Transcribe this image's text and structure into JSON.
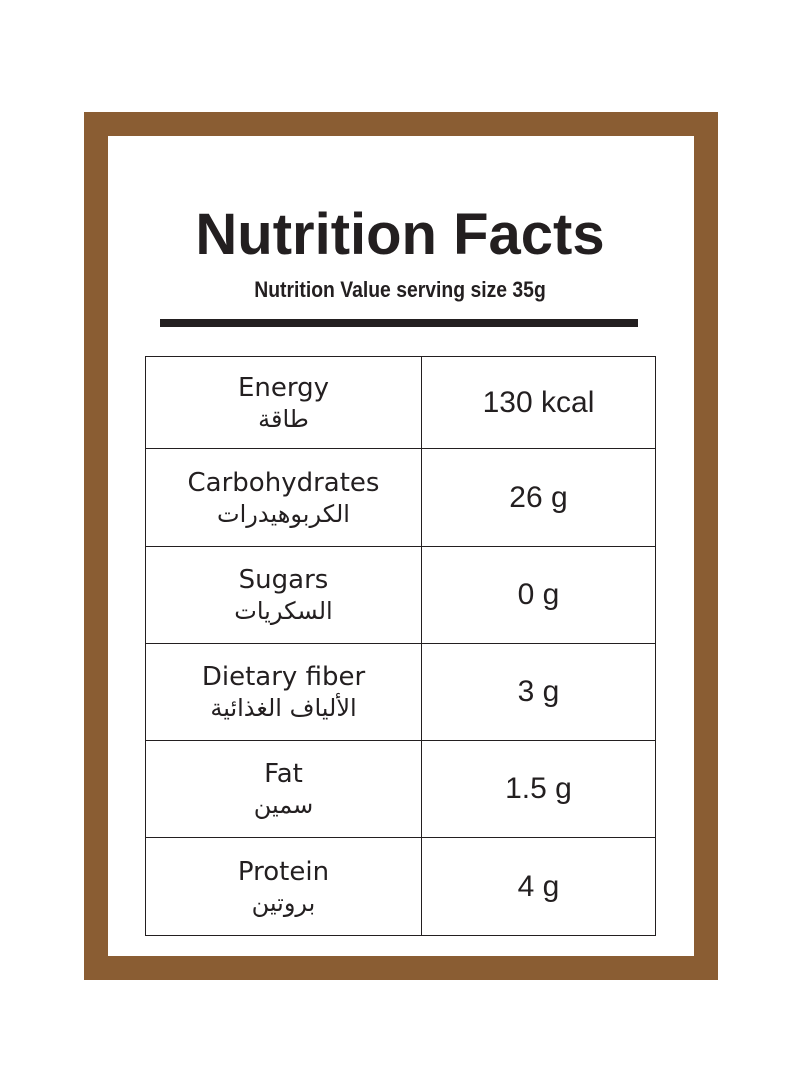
{
  "header": {
    "title": "Nutrition Facts",
    "subtitle": "Nutrition Value serving size 35g"
  },
  "table": {
    "rows": [
      [
        "Energy",
        "طاقة",
        "130 kcal"
      ],
      [
        "Carbohydrates",
        "الكربوهيدرات",
        "26 g"
      ],
      [
        "Sugars",
        "السكريات",
        "0 g"
      ],
      [
        "Dietary fiber",
        "الألياف الغذائية",
        "3 g"
      ],
      [
        "Fat",
        "سمين",
        "1.5 g"
      ],
      [
        "Protein",
        "بروتين",
        "4 g"
      ]
    ]
  }
}
